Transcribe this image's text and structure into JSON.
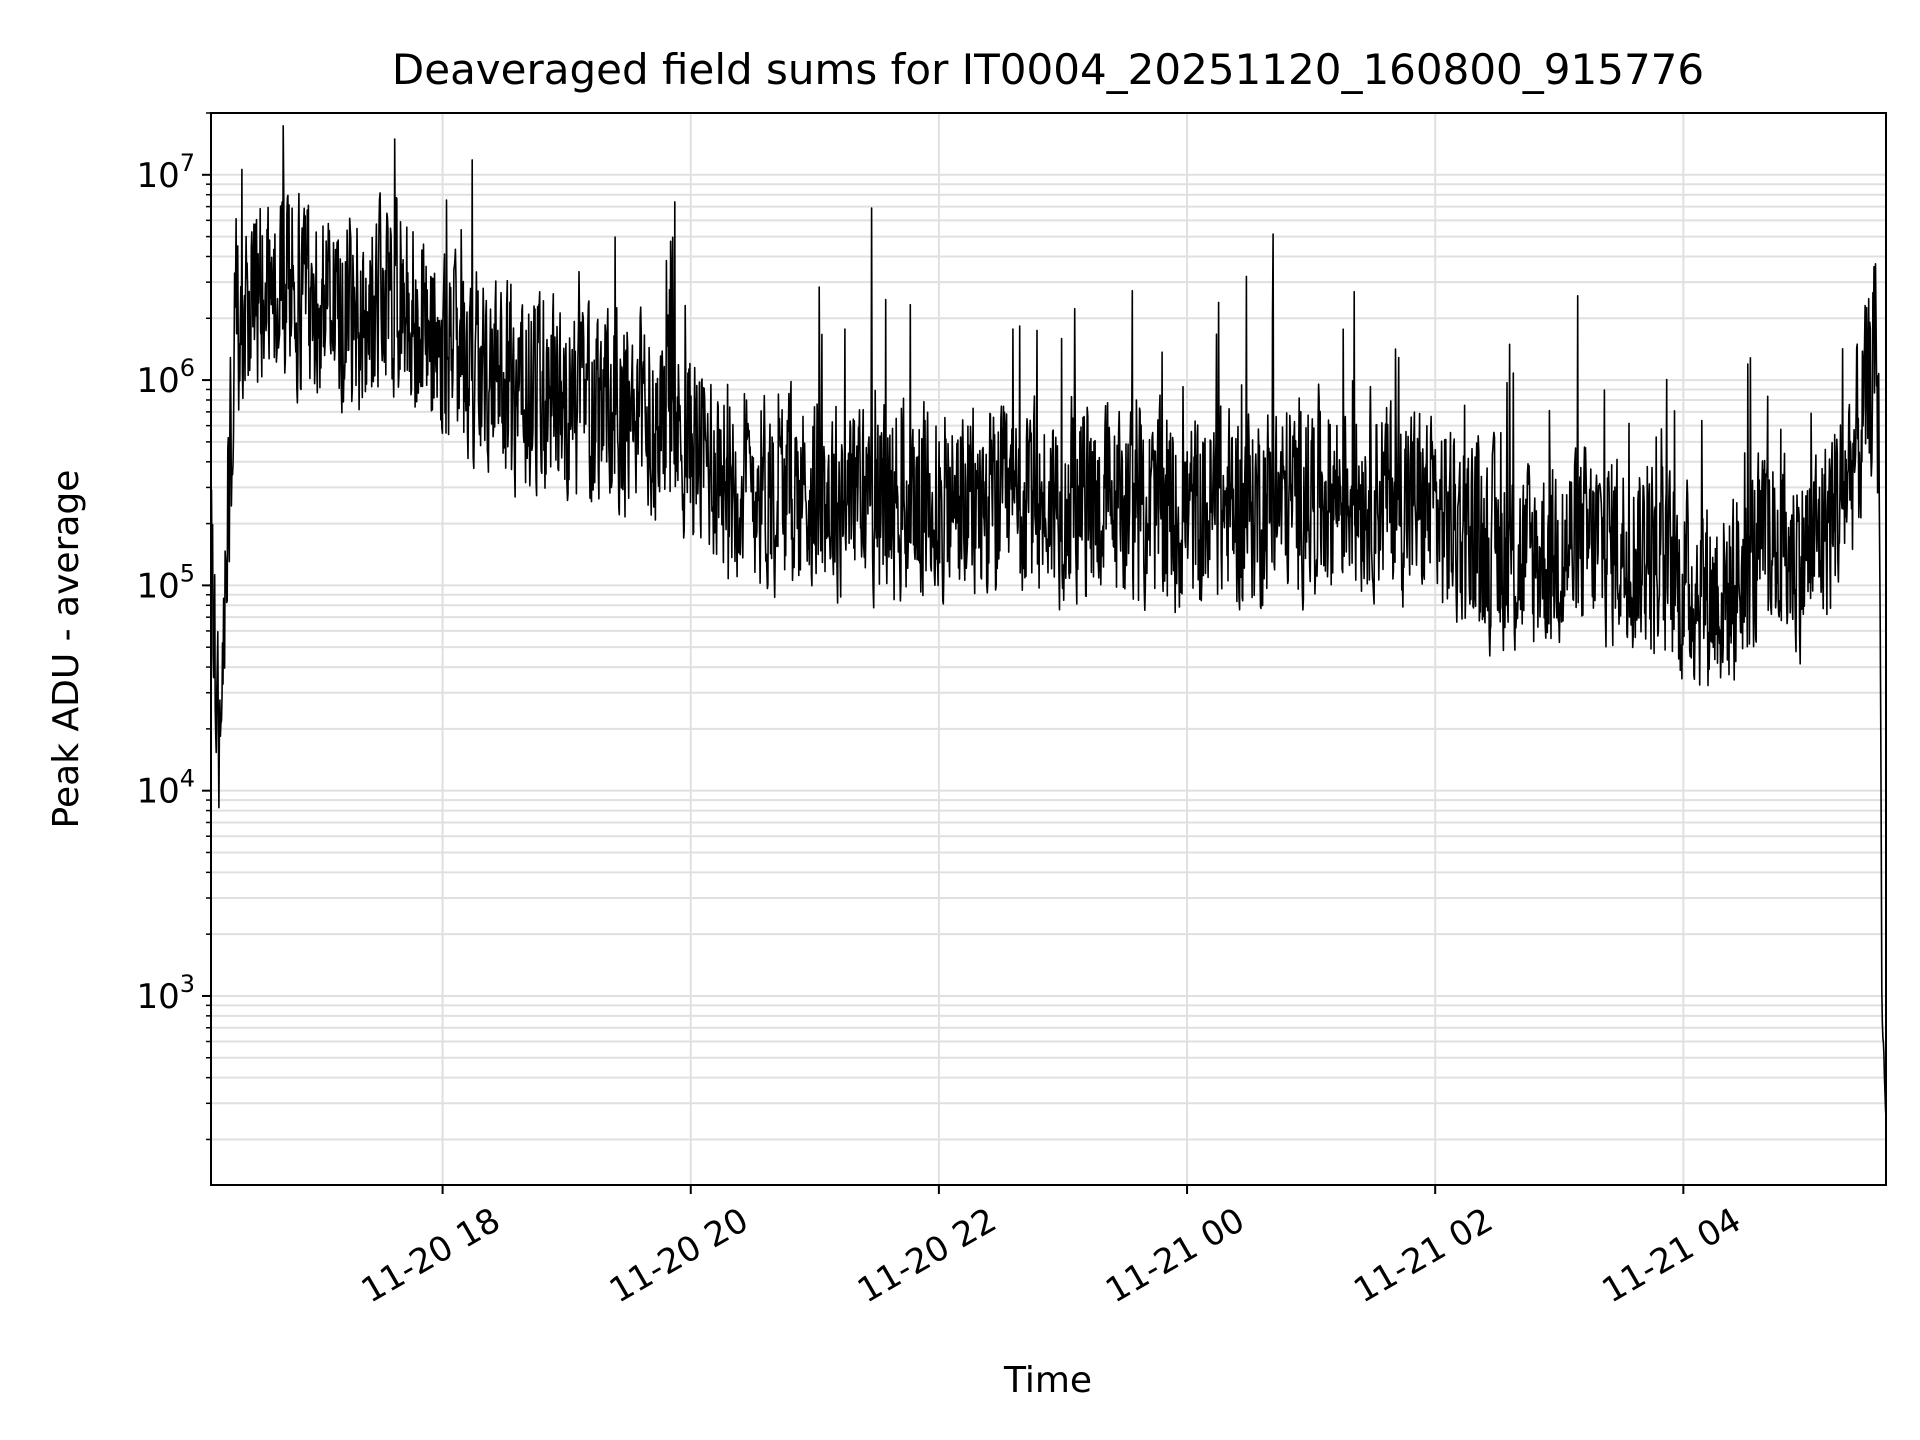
{
  "chart_data": {
    "type": "line",
    "title": "Deaveraged field sums for IT0004_20251120_160800_915776",
    "xlabel": "Time",
    "ylabel": "Peak ADU - average",
    "yscale": "log",
    "grid": true,
    "x_range": [
      "2025-11-20 16:08",
      "2025-11-21 05:38"
    ],
    "y_range": [
      120,
      20000000
    ],
    "x_ticks": [
      "11-20 18",
      "11-20 20",
      "11-20 22",
      "11-21 00",
      "11-21 02",
      "11-21 04"
    ],
    "x_tick_times": [
      "2025-11-20 18:00",
      "2025-11-20 20:00",
      "2025-11-20 22:00",
      "2025-11-21 00:00",
      "2025-11-21 02:00",
      "2025-11-21 04:00"
    ],
    "y_ticks": [
      {
        "base": "10",
        "exp": "3",
        "value": 1000
      },
      {
        "base": "10",
        "exp": "4",
        "value": 10000
      },
      {
        "base": "10",
        "exp": "5",
        "value": 100000
      },
      {
        "base": "10",
        "exp": "6",
        "value": 1000000
      },
      {
        "base": "10",
        "exp": "7",
        "value": 10000000
      }
    ],
    "line_color": "#000000",
    "grid_color": "#e0e0e0",
    "series": [
      {
        "x": [
          "2025-11-20 16:08",
          "2025-11-20 16:10",
          "2025-11-20 16:12",
          "2025-11-20 16:15",
          "2025-11-20 16:20",
          "2025-11-20 16:30",
          "2025-11-20 16:40",
          "2025-11-20 17:00",
          "2025-11-20 17:20",
          "2025-11-20 17:40",
          "2025-11-20 18:00",
          "2025-11-20 18:20",
          "2025-11-20 18:40",
          "2025-11-20 19:00",
          "2025-11-20 19:20",
          "2025-11-20 19:40",
          "2025-11-20 20:00",
          "2025-11-20 20:20",
          "2025-11-20 20:40",
          "2025-11-20 21:00",
          "2025-11-20 21:20",
          "2025-11-20 21:40",
          "2025-11-20 22:00",
          "2025-11-20 22:20",
          "2025-11-20 22:40",
          "2025-11-20 23:00",
          "2025-11-20 23:20",
          "2025-11-20 23:40",
          "2025-11-21 00:00",
          "2025-11-21 00:20",
          "2025-11-21 00:40",
          "2025-11-21 01:00",
          "2025-11-21 01:20",
          "2025-11-21 01:40",
          "2025-11-21 02:00",
          "2025-11-21 02:20",
          "2025-11-21 02:40",
          "2025-11-21 03:00",
          "2025-11-21 03:20",
          "2025-11-21 03:40",
          "2025-11-21 04:00",
          "2025-11-21 04:20",
          "2025-11-21 04:40",
          "2025-11-21 05:00",
          "2025-11-21 05:15",
          "2025-11-21 05:25",
          "2025-11-21 05:30",
          "2025-11-21 05:33",
          "2025-11-21 05:35",
          "2025-11-21 05:36",
          "2025-11-21 05:37",
          "2025-11-21 05:38"
        ],
        "y": [
          180000,
          40000,
          15000,
          120000,
          2000000,
          2500000,
          3000000,
          2500000,
          2000000,
          2800000,
          1300000,
          1100000,
          900000,
          800000,
          700000,
          650000,
          500000,
          350000,
          300000,
          280000,
          270000,
          260000,
          250000,
          240000,
          230000,
          260000,
          250000,
          240000,
          220000,
          240000,
          250000,
          280000,
          300000,
          280000,
          230000,
          170000,
          130000,
          150000,
          160000,
          150000,
          100000,
          90000,
          150000,
          140000,
          250000,
          500000,
          900000,
          1400000,
          300000,
          900,
          500,
          250
        ]
      }
    ]
  }
}
